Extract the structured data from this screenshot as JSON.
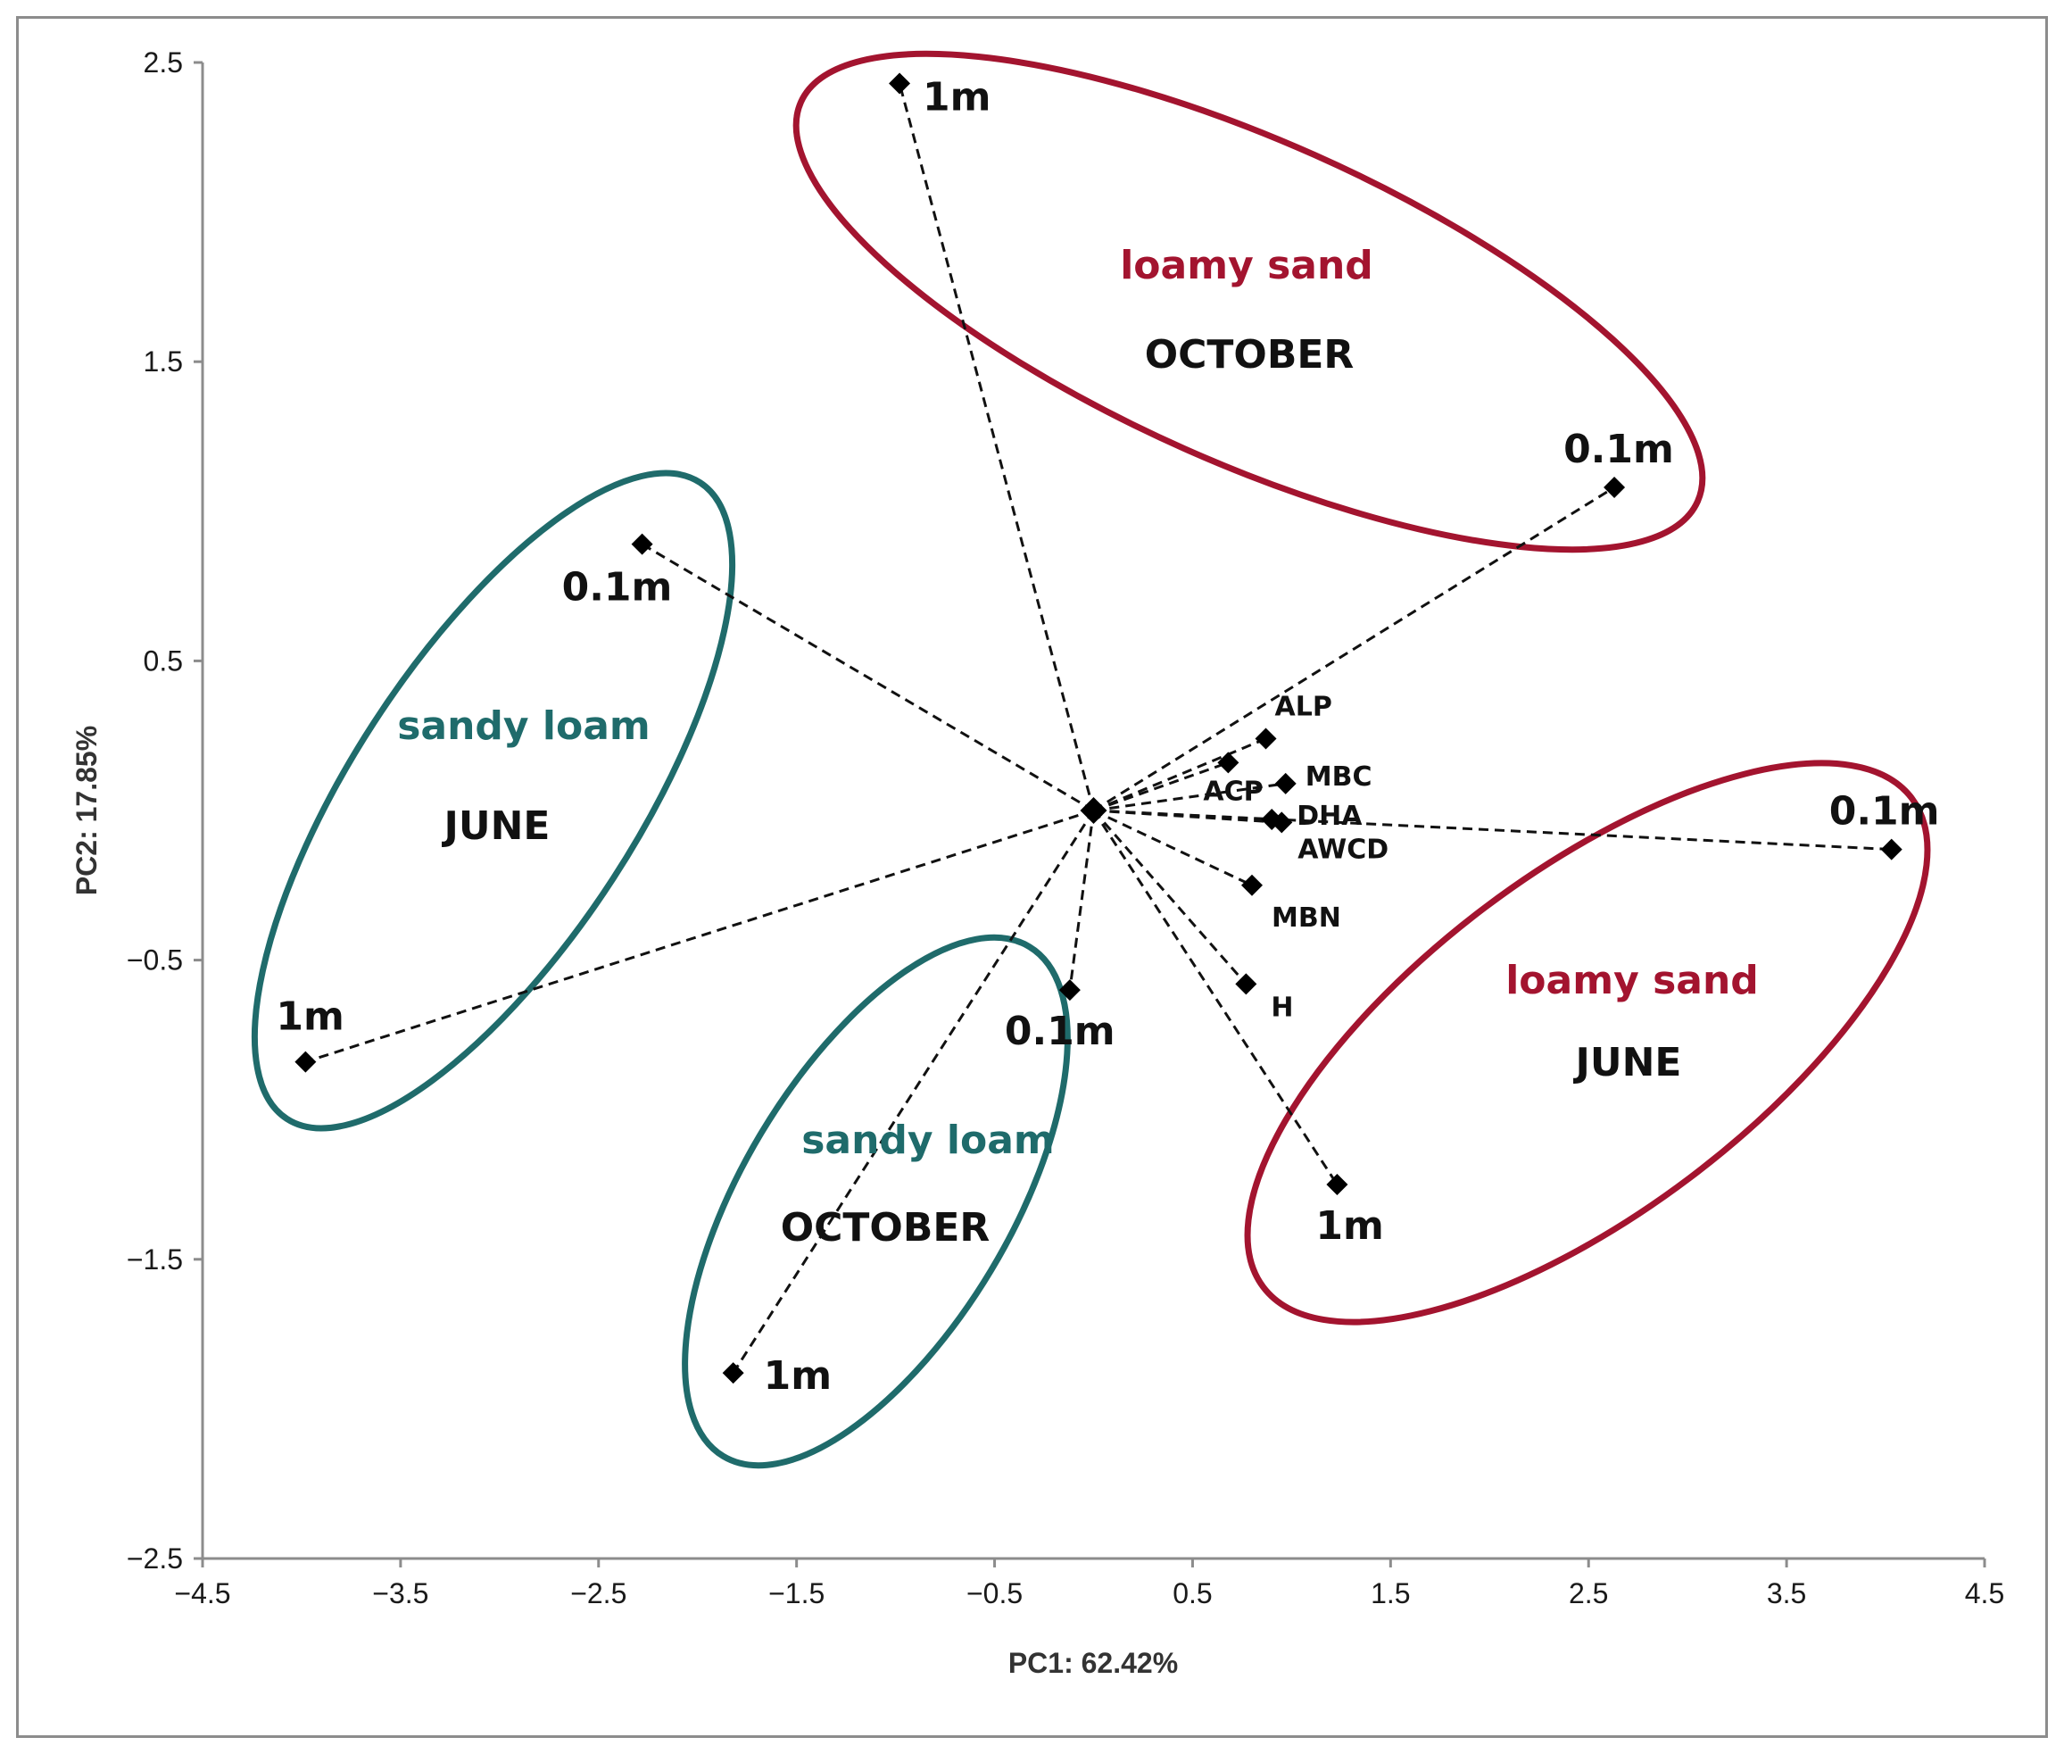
{
  "colors": {
    "loamy_sand": "#a3142f",
    "sandy_loam": "#1f6b6b",
    "axis": "#8c8c8c",
    "marker": "#000000"
  },
  "chart_data": {
    "type": "scatter",
    "title": "",
    "xlabel": "PC1: 62.42%",
    "ylabel": "PC2: 17.85%",
    "xlim": [
      -4.5,
      4.5
    ],
    "ylim": [
      -2.5,
      2.5
    ],
    "xticks": [
      -4.5,
      -3.5,
      -2.5,
      -1.5,
      -0.5,
      0.5,
      1.5,
      2.5,
      3.5,
      4.5
    ],
    "yticks": [
      2.5,
      1.5,
      0.5,
      -0.5,
      -1.5,
      -2.5
    ],
    "xtick_labels": [
      "−4.5",
      "−3.5",
      "−2.5",
      "−1.5",
      "−0.5",
      "0.5",
      "1.5",
      "2.5",
      "3.5",
      "4.5"
    ],
    "ytick_labels": [
      "2.5",
      "1.5",
      "0.5",
      "−0.5",
      "−1.5",
      "−2.5"
    ],
    "origin": [
      0.0,
      0.0
    ],
    "samples": [
      {
        "label": "1m",
        "x": -0.98,
        "y": 2.43,
        "group": "loamy sand OCTOBER"
      },
      {
        "label": "0.1m",
        "x": 2.63,
        "y": 1.08,
        "group": "loamy sand OCTOBER"
      },
      {
        "label": "0.1m",
        "x": -2.28,
        "y": 0.89,
        "group": "sandy loam JUNE"
      },
      {
        "label": "1m",
        "x": -3.98,
        "y": -0.84,
        "group": "sandy loam JUNE"
      },
      {
        "label": "0.1m",
        "x": -0.12,
        "y": -0.6,
        "group": "sandy loam OCTOBER"
      },
      {
        "label": "1m",
        "x": -1.82,
        "y": -1.88,
        "group": "sandy loam OCTOBER"
      },
      {
        "label": "0.1m",
        "x": 4.03,
        "y": -0.13,
        "group": "loamy sand JUNE"
      },
      {
        "label": "1m",
        "x": 1.23,
        "y": -1.25,
        "group": "loamy sand JUNE"
      }
    ],
    "variables": [
      {
        "label": "ALP",
        "x": 0.87,
        "y": 0.24
      },
      {
        "label": "ACP",
        "x": 0.68,
        "y": 0.16
      },
      {
        "label": "MBC",
        "x": 0.97,
        "y": 0.09
      },
      {
        "label": "DHA",
        "x": 0.9,
        "y": -0.03
      },
      {
        "label": "AWCD",
        "x": 0.95,
        "y": -0.04
      },
      {
        "label": "MBN",
        "x": 0.8,
        "y": -0.25
      },
      {
        "label": "H",
        "x": 0.77,
        "y": -0.58
      }
    ],
    "groups": [
      {
        "soil": "loamy sand",
        "month": "OCTOBER",
        "color": "loamy_sand"
      },
      {
        "soil": "sandy loam",
        "month": "JUNE",
        "color": "sandy_loam"
      },
      {
        "soil": "sandy loam",
        "month": "OCTOBER",
        "color": "sandy_loam"
      },
      {
        "soil": "loamy sand",
        "month": "JUNE",
        "color": "loamy_sand"
      }
    ]
  }
}
